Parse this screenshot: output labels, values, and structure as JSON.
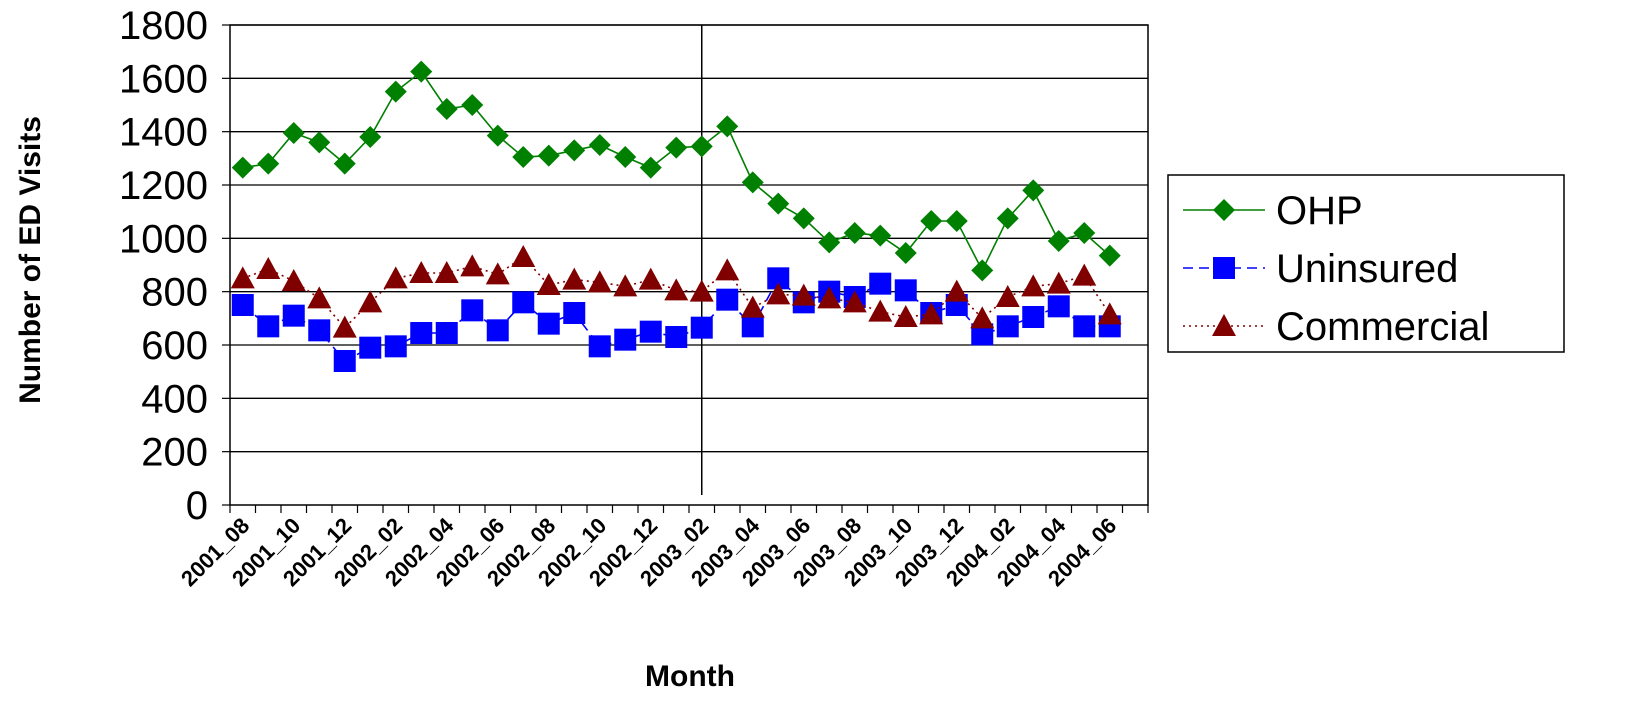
{
  "chart_data": {
    "type": "line",
    "title": "",
    "xlabel": "Month",
    "ylabel": "Number of ED Visits",
    "ylim": [
      0,
      1800
    ],
    "yticks": [
      0,
      200,
      400,
      600,
      800,
      1000,
      1200,
      1400,
      1600,
      1800
    ],
    "grid": true,
    "legend_position": "right",
    "x": [
      "2001_08",
      "2001_09",
      "2001_10",
      "2001_11",
      "2001_12",
      "2002_01",
      "2002_02",
      "2002_03",
      "2002_04",
      "2002_05",
      "2002_06",
      "2002_07",
      "2002_08",
      "2002_09",
      "2002_10",
      "2002_11",
      "2002_12",
      "2003_01",
      "2003_02",
      "2003_03",
      "2003_04",
      "2003_05",
      "2003_06",
      "2003_07",
      "2003_08",
      "2003_09",
      "2003_10",
      "2003_11",
      "2003_12",
      "2004_01",
      "2004_02",
      "2004_03",
      "2004_04",
      "2004_05",
      "2004_06",
      "2004_07"
    ],
    "x_tick_labels": [
      "2001_08",
      "2001_10",
      "2001_12",
      "2002_02",
      "2002_04",
      "2002_06",
      "2002_08",
      "2002_10",
      "2002_12",
      "2003_02",
      "2003_04",
      "2003_06",
      "2003_08",
      "2003_10",
      "2003_12",
      "2004_02",
      "2004_04",
      "2004_06"
    ],
    "vertical_marker": "2003_02",
    "series": [
      {
        "name": "OHP",
        "color": "#008000",
        "marker": "diamond",
        "line": "solid",
        "values": [
          1265,
          1280,
          1395,
          1360,
          1280,
          1380,
          1550,
          1625,
          1485,
          1500,
          1385,
          1305,
          1310,
          1330,
          1350,
          1305,
          1265,
          1340,
          1345,
          1420,
          1210,
          1130,
          1075,
          985,
          1020,
          1010,
          945,
          1065,
          1065,
          880,
          1075,
          1180,
          990,
          1020,
          935,
          null
        ]
      },
      {
        "name": "Uninsured",
        "color": "#0000ff",
        "marker": "square",
        "line": "dashed",
        "values": [
          750,
          670,
          710,
          655,
          540,
          590,
          595,
          645,
          645,
          730,
          655,
          760,
          680,
          720,
          595,
          620,
          650,
          630,
          665,
          770,
          670,
          850,
          760,
          800,
          780,
          830,
          805,
          720,
          750,
          640,
          670,
          705,
          745,
          670,
          670,
          null
        ]
      },
      {
        "name": "Commercial",
        "color": "#800000",
        "marker": "triangle",
        "line": "dotted",
        "values": [
          850,
          885,
          840,
          775,
          665,
          760,
          850,
          870,
          870,
          895,
          865,
          930,
          825,
          845,
          835,
          820,
          845,
          805,
          800,
          880,
          740,
          790,
          785,
          775,
          760,
          725,
          705,
          715,
          800,
          700,
          780,
          820,
          830,
          860,
          715,
          null
        ]
      }
    ]
  }
}
